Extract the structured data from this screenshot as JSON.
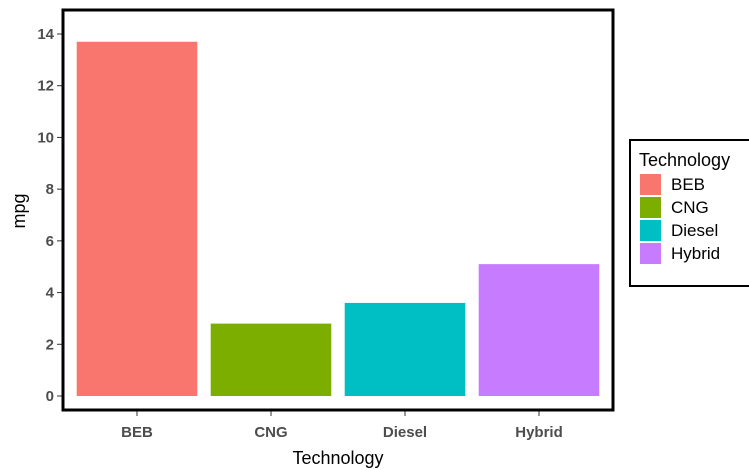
{
  "chart_data": {
    "type": "bar",
    "categories": [
      "BEB",
      "CNG",
      "Diesel",
      "Hybrid"
    ],
    "values": [
      13.7,
      2.8,
      3.6,
      5.1
    ],
    "colors": [
      "#F8766D",
      "#7CAE00",
      "#00BFC4",
      "#C77CFF"
    ],
    "xlabel": "Technology",
    "ylabel": "mpg",
    "ylim": [
      0,
      14
    ],
    "yticks": [
      0,
      2,
      4,
      6,
      8,
      10,
      12,
      14
    ],
    "grid": false,
    "legend": {
      "title": "Technology",
      "position": "right",
      "entries": [
        "BEB",
        "CNG",
        "Diesel",
        "Hybrid"
      ]
    }
  }
}
